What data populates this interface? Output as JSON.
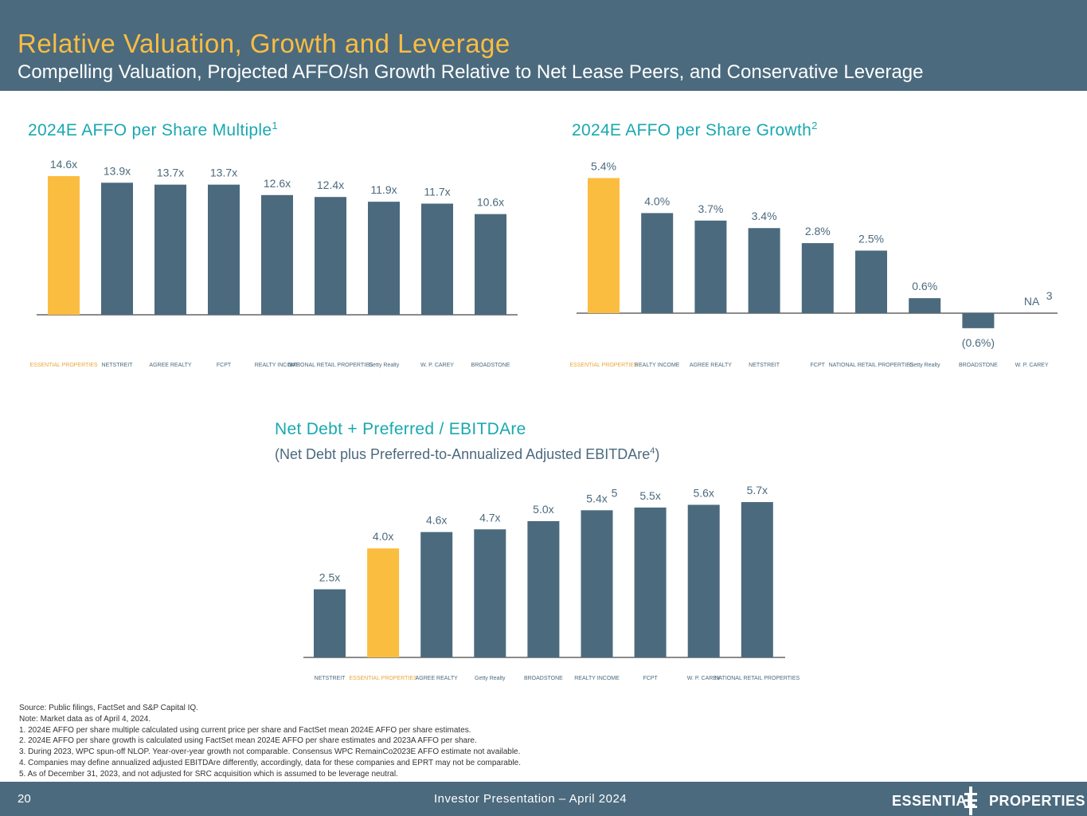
{
  "header": {
    "title": "Relative Valuation, Growth and Leverage",
    "subtitle": "Compelling Valuation, Projected AFFO/sh Growth Relative to Net Lease Peers, and Conservative Leverage"
  },
  "colors": {
    "header_bg": "#4b6a7e",
    "bar": "#4b6a7e",
    "highlight": "#fbbd40",
    "chart_title": "#19a8b0"
  },
  "chart_titles": {
    "multiple": "2024E AFFO per Share Multiple",
    "multiple_sup": "1",
    "growth": "2024E AFFO per Share Growth",
    "growth_sup": "2",
    "leverage": "Net Debt + Preferred / EBITDAre",
    "leverage_sub_pre": "(Net Debt plus Preferred-to-Annualized Adjusted EBITDAre",
    "leverage_sub_sup": "4",
    "leverage_sub_post": ")"
  },
  "chart_data": [
    {
      "type": "bar",
      "title": "2024E AFFO per Share Multiple",
      "categories": [
        "ESSENTIAL PROPERTIES",
        "NETSTREIT",
        "AGREE REALTY",
        "FCPT",
        "REALTY INCOME",
        "NATIONAL RETAIL PROPERTIES",
        "Getty Realty",
        "W. P. CAREY",
        "BROADSTONE"
      ],
      "values": [
        14.6,
        13.9,
        13.7,
        13.7,
        12.6,
        12.4,
        11.9,
        11.7,
        10.6
      ],
      "labels": [
        "14.6x",
        "13.9x",
        "13.7x",
        "13.7x",
        "12.6x",
        "12.4x",
        "11.9x",
        "11.7x",
        "10.6x"
      ],
      "highlight_index": 0
    },
    {
      "type": "bar",
      "title": "2024E AFFO per Share Growth",
      "categories": [
        "ESSENTIAL PROPERTIES",
        "REALTY INCOME",
        "AGREE REALTY",
        "NETSTREIT",
        "FCPT",
        "NATIONAL RETAIL PROPERTIES",
        "Getty Realty",
        "BROADSTONE",
        "W. P. CAREY"
      ],
      "values": [
        5.4,
        4.0,
        3.7,
        3.4,
        2.8,
        2.5,
        0.6,
        -0.6,
        null
      ],
      "labels": [
        "5.4%",
        "4.0%",
        "3.7%",
        "3.4%",
        "2.8%",
        "2.5%",
        "0.6%",
        "(0.6%)",
        "NA"
      ],
      "label_sups": [
        "",
        "",
        "",
        "",
        "",
        "",
        "",
        "",
        "3"
      ],
      "highlight_index": 0
    },
    {
      "type": "bar",
      "title": "Net Debt + Preferred / EBITDAre",
      "subtitle": "(Net Debt plus Preferred-to-Annualized Adjusted EBITDAre4)",
      "categories": [
        "NETSTREIT",
        "ESSENTIAL PROPERTIES",
        "AGREE REALTY",
        "Getty Realty",
        "BROADSTONE",
        "REALTY INCOME",
        "FCPT",
        "W. P. CAREY",
        "NATIONAL RETAIL PROPERTIES"
      ],
      "values": [
        2.5,
        4.0,
        4.6,
        4.7,
        5.0,
        5.4,
        5.5,
        5.6,
        5.7
      ],
      "labels": [
        "2.5x",
        "4.0x",
        "4.6x",
        "4.7x",
        "5.0x",
        "5.4x",
        "5.5x",
        "5.6x",
        "5.7x"
      ],
      "label_sups": [
        "",
        "",
        "",
        "",
        "",
        "5",
        "",
        "",
        ""
      ],
      "highlight_index": 1
    }
  ],
  "footnotes": [
    "Source: Public filings, FactSet and S&P Capital IQ.",
    "Note: Market data as of April 4, 2024.",
    "1.  2024E AFFO per share multiple calculated using current price per share and FactSet mean 2024E AFFO per share estimates.",
    "2.  2024E AFFO per share growth is calculated using FactSet mean 2024E AFFO per share estimates and 2023A AFFO per share.",
    "3.  During 2023, WPC spun-off NLOP. Year-over-year growth not comparable. Consensus WPC RemainCo2023E AFFO estimate not available.",
    "4.  Companies may define annualized adjusted EBITDAre differently, accordingly, data for these companies and EPRT may not be comparable.",
    "5.  As of December 31, 2023, and not adjusted for SRC acquisition which is assumed to be leverage neutral."
  ],
  "footer": {
    "page_number": "20",
    "presentation": "Investor Presentation – April 2024",
    "brand_left": "ESSENTIAL",
    "brand_right": "PROPERTIES"
  }
}
